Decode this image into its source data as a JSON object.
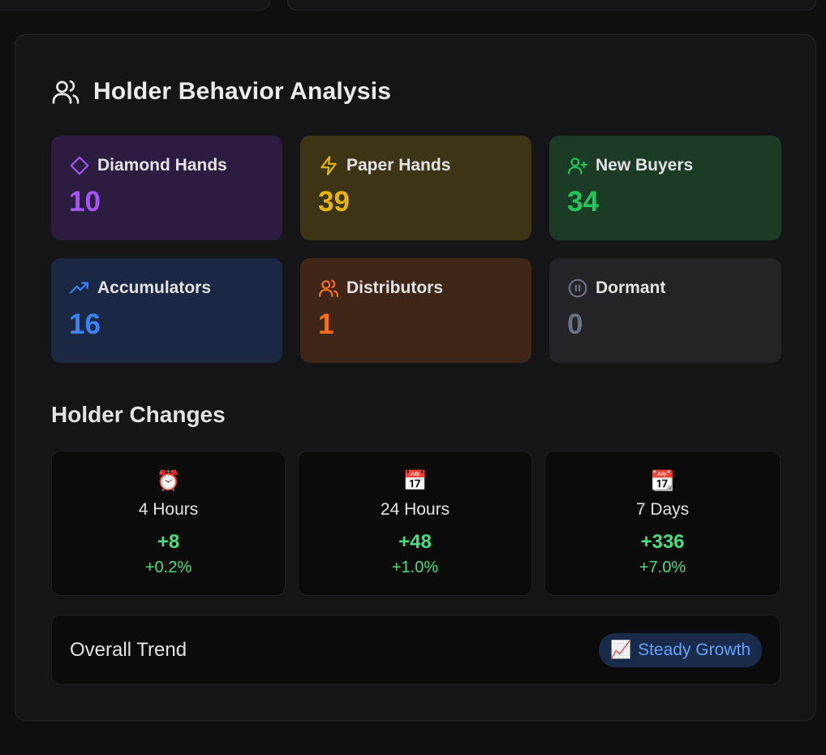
{
  "header": {
    "title": "Holder Behavior Analysis",
    "icon": "users-icon"
  },
  "behavior": [
    {
      "label": "Diamond Hands",
      "value": "10",
      "icon": "diamond-icon",
      "color": "#a855f7"
    },
    {
      "label": "Paper Hands",
      "value": "39",
      "icon": "lightning-icon",
      "color": "#eab308"
    },
    {
      "label": "New Buyers",
      "value": "34",
      "icon": "user-plus-icon",
      "color": "#22c55e"
    },
    {
      "label": "Accumulators",
      "value": "16",
      "icon": "trending-up-icon",
      "color": "#3b82f6"
    },
    {
      "label": "Distributors",
      "value": "1",
      "icon": "users-icon",
      "color": "#f97316"
    },
    {
      "label": "Dormant",
      "value": "0",
      "icon": "pause-circle-icon",
      "color": "#6b7280"
    }
  ],
  "changes": {
    "title": "Holder Changes",
    "items": [
      {
        "emoji": "⏰",
        "label": "4 Hours",
        "abs": "+8",
        "pct": "+0.2%"
      },
      {
        "emoji": "📅",
        "label": "24 Hours",
        "abs": "+48",
        "pct": "+1.0%"
      },
      {
        "emoji": "📆",
        "label": "7 Days",
        "abs": "+336",
        "pct": "+7.0%"
      }
    ]
  },
  "trend": {
    "label": "Overall Trend",
    "badge_emoji": "📈",
    "badge_text": "Steady Growth"
  }
}
